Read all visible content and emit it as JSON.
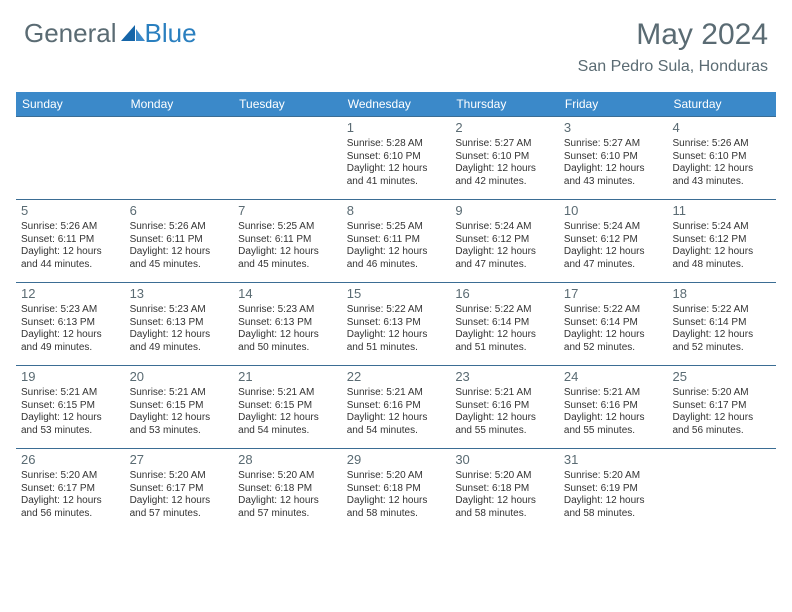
{
  "logo": {
    "text1": "General",
    "text2": "Blue"
  },
  "title": "May 2024",
  "location": "San Pedro Sula, Honduras",
  "colors": {
    "header_bg": "#3b89c9",
    "header_text": "#ffffff",
    "border": "#3b6d94",
    "text_muted": "#5a6b73",
    "text": "#333333",
    "logo_blue": "#2a7fbf"
  },
  "day_headers": [
    "Sunday",
    "Monday",
    "Tuesday",
    "Wednesday",
    "Thursday",
    "Friday",
    "Saturday"
  ],
  "weeks": [
    [
      {
        "n": "",
        "sr": "",
        "ss": "",
        "d1": "",
        "d2": ""
      },
      {
        "n": "",
        "sr": "",
        "ss": "",
        "d1": "",
        "d2": ""
      },
      {
        "n": "",
        "sr": "",
        "ss": "",
        "d1": "",
        "d2": ""
      },
      {
        "n": "1",
        "sr": "Sunrise: 5:28 AM",
        "ss": "Sunset: 6:10 PM",
        "d1": "Daylight: 12 hours",
        "d2": "and 41 minutes."
      },
      {
        "n": "2",
        "sr": "Sunrise: 5:27 AM",
        "ss": "Sunset: 6:10 PM",
        "d1": "Daylight: 12 hours",
        "d2": "and 42 minutes."
      },
      {
        "n": "3",
        "sr": "Sunrise: 5:27 AM",
        "ss": "Sunset: 6:10 PM",
        "d1": "Daylight: 12 hours",
        "d2": "and 43 minutes."
      },
      {
        "n": "4",
        "sr": "Sunrise: 5:26 AM",
        "ss": "Sunset: 6:10 PM",
        "d1": "Daylight: 12 hours",
        "d2": "and 43 minutes."
      }
    ],
    [
      {
        "n": "5",
        "sr": "Sunrise: 5:26 AM",
        "ss": "Sunset: 6:11 PM",
        "d1": "Daylight: 12 hours",
        "d2": "and 44 minutes."
      },
      {
        "n": "6",
        "sr": "Sunrise: 5:26 AM",
        "ss": "Sunset: 6:11 PM",
        "d1": "Daylight: 12 hours",
        "d2": "and 45 minutes."
      },
      {
        "n": "7",
        "sr": "Sunrise: 5:25 AM",
        "ss": "Sunset: 6:11 PM",
        "d1": "Daylight: 12 hours",
        "d2": "and 45 minutes."
      },
      {
        "n": "8",
        "sr": "Sunrise: 5:25 AM",
        "ss": "Sunset: 6:11 PM",
        "d1": "Daylight: 12 hours",
        "d2": "and 46 minutes."
      },
      {
        "n": "9",
        "sr": "Sunrise: 5:24 AM",
        "ss": "Sunset: 6:12 PM",
        "d1": "Daylight: 12 hours",
        "d2": "and 47 minutes."
      },
      {
        "n": "10",
        "sr": "Sunrise: 5:24 AM",
        "ss": "Sunset: 6:12 PM",
        "d1": "Daylight: 12 hours",
        "d2": "and 47 minutes."
      },
      {
        "n": "11",
        "sr": "Sunrise: 5:24 AM",
        "ss": "Sunset: 6:12 PM",
        "d1": "Daylight: 12 hours",
        "d2": "and 48 minutes."
      }
    ],
    [
      {
        "n": "12",
        "sr": "Sunrise: 5:23 AM",
        "ss": "Sunset: 6:13 PM",
        "d1": "Daylight: 12 hours",
        "d2": "and 49 minutes."
      },
      {
        "n": "13",
        "sr": "Sunrise: 5:23 AM",
        "ss": "Sunset: 6:13 PM",
        "d1": "Daylight: 12 hours",
        "d2": "and 49 minutes."
      },
      {
        "n": "14",
        "sr": "Sunrise: 5:23 AM",
        "ss": "Sunset: 6:13 PM",
        "d1": "Daylight: 12 hours",
        "d2": "and 50 minutes."
      },
      {
        "n": "15",
        "sr": "Sunrise: 5:22 AM",
        "ss": "Sunset: 6:13 PM",
        "d1": "Daylight: 12 hours",
        "d2": "and 51 minutes."
      },
      {
        "n": "16",
        "sr": "Sunrise: 5:22 AM",
        "ss": "Sunset: 6:14 PM",
        "d1": "Daylight: 12 hours",
        "d2": "and 51 minutes."
      },
      {
        "n": "17",
        "sr": "Sunrise: 5:22 AM",
        "ss": "Sunset: 6:14 PM",
        "d1": "Daylight: 12 hours",
        "d2": "and 52 minutes."
      },
      {
        "n": "18",
        "sr": "Sunrise: 5:22 AM",
        "ss": "Sunset: 6:14 PM",
        "d1": "Daylight: 12 hours",
        "d2": "and 52 minutes."
      }
    ],
    [
      {
        "n": "19",
        "sr": "Sunrise: 5:21 AM",
        "ss": "Sunset: 6:15 PM",
        "d1": "Daylight: 12 hours",
        "d2": "and 53 minutes."
      },
      {
        "n": "20",
        "sr": "Sunrise: 5:21 AM",
        "ss": "Sunset: 6:15 PM",
        "d1": "Daylight: 12 hours",
        "d2": "and 53 minutes."
      },
      {
        "n": "21",
        "sr": "Sunrise: 5:21 AM",
        "ss": "Sunset: 6:15 PM",
        "d1": "Daylight: 12 hours",
        "d2": "and 54 minutes."
      },
      {
        "n": "22",
        "sr": "Sunrise: 5:21 AM",
        "ss": "Sunset: 6:16 PM",
        "d1": "Daylight: 12 hours",
        "d2": "and 54 minutes."
      },
      {
        "n": "23",
        "sr": "Sunrise: 5:21 AM",
        "ss": "Sunset: 6:16 PM",
        "d1": "Daylight: 12 hours",
        "d2": "and 55 minutes."
      },
      {
        "n": "24",
        "sr": "Sunrise: 5:21 AM",
        "ss": "Sunset: 6:16 PM",
        "d1": "Daylight: 12 hours",
        "d2": "and 55 minutes."
      },
      {
        "n": "25",
        "sr": "Sunrise: 5:20 AM",
        "ss": "Sunset: 6:17 PM",
        "d1": "Daylight: 12 hours",
        "d2": "and 56 minutes."
      }
    ],
    [
      {
        "n": "26",
        "sr": "Sunrise: 5:20 AM",
        "ss": "Sunset: 6:17 PM",
        "d1": "Daylight: 12 hours",
        "d2": "and 56 minutes."
      },
      {
        "n": "27",
        "sr": "Sunrise: 5:20 AM",
        "ss": "Sunset: 6:17 PM",
        "d1": "Daylight: 12 hours",
        "d2": "and 57 minutes."
      },
      {
        "n": "28",
        "sr": "Sunrise: 5:20 AM",
        "ss": "Sunset: 6:18 PM",
        "d1": "Daylight: 12 hours",
        "d2": "and 57 minutes."
      },
      {
        "n": "29",
        "sr": "Sunrise: 5:20 AM",
        "ss": "Sunset: 6:18 PM",
        "d1": "Daylight: 12 hours",
        "d2": "and 58 minutes."
      },
      {
        "n": "30",
        "sr": "Sunrise: 5:20 AM",
        "ss": "Sunset: 6:18 PM",
        "d1": "Daylight: 12 hours",
        "d2": "and 58 minutes."
      },
      {
        "n": "31",
        "sr": "Sunrise: 5:20 AM",
        "ss": "Sunset: 6:19 PM",
        "d1": "Daylight: 12 hours",
        "d2": "and 58 minutes."
      },
      {
        "n": "",
        "sr": "",
        "ss": "",
        "d1": "",
        "d2": ""
      }
    ]
  ]
}
